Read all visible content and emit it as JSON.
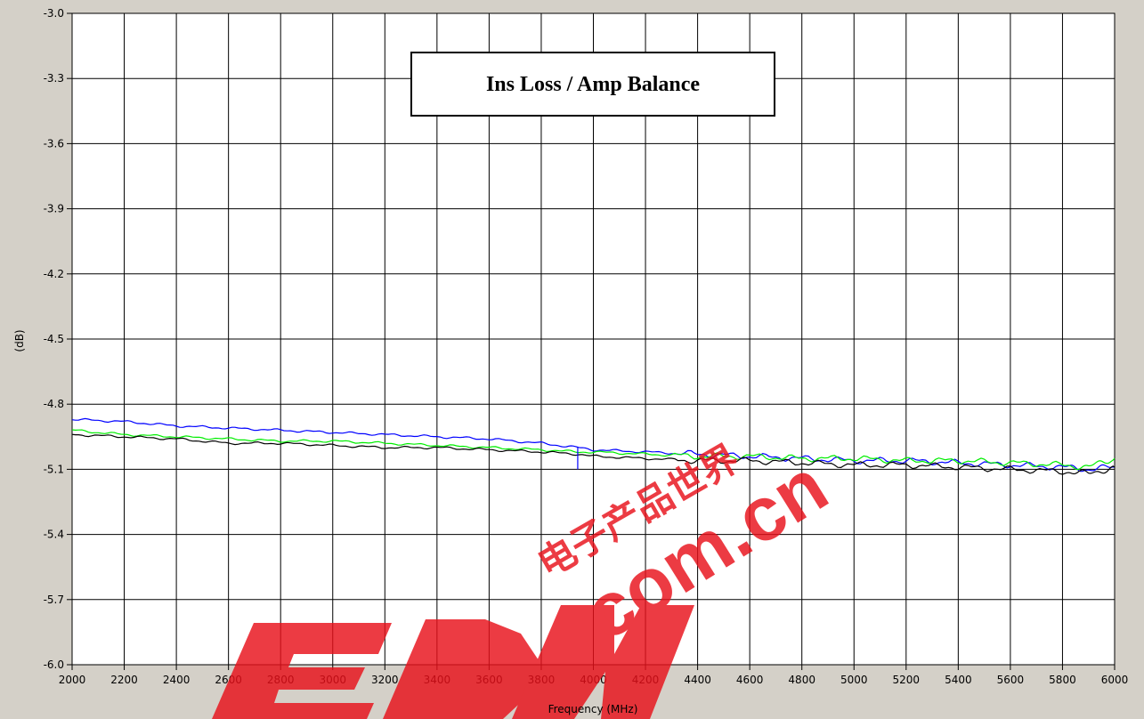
{
  "chart_data": {
    "type": "line",
    "title": "Ins Loss / Amp Balance",
    "xlabel": "Frequency (MHz)",
    "ylabel": "(dB)",
    "xlim": [
      2000,
      6000
    ],
    "ylim": [
      -6.0,
      -3.0
    ],
    "x_ticks": [
      "2000",
      "2200",
      "2400",
      "2600",
      "2800",
      "3000",
      "3200",
      "3400",
      "3600",
      "3800",
      "4000",
      "4200",
      "4400",
      "4600",
      "4800",
      "5000",
      "5200",
      "5400",
      "5600",
      "5800",
      "6000"
    ],
    "y_ticks": [
      "-3.0",
      "-3.3",
      "-3.6",
      "-3.9",
      "-4.2",
      "-4.5",
      "-4.8",
      "-5.1",
      "-5.4",
      "-5.7",
      "-6.0"
    ],
    "x_tick_values": [
      2000,
      2200,
      2400,
      2600,
      2800,
      3000,
      3200,
      3400,
      3600,
      3800,
      4000,
      4200,
      4400,
      4600,
      4800,
      5000,
      5200,
      5400,
      5600,
      5800,
      6000
    ],
    "y_tick_values": [
      -3.0,
      -3.3,
      -3.6,
      -3.9,
      -4.2,
      -4.5,
      -4.8,
      -5.1,
      -5.4,
      -5.7,
      -6.0
    ],
    "grid": true,
    "legend": "none",
    "x": [
      2000,
      2200,
      2400,
      2600,
      2800,
      3000,
      3200,
      3400,
      3600,
      3800,
      3940,
      4000,
      4200,
      4400,
      4600,
      4800,
      5000,
      5200,
      5400,
      5600,
      5800,
      5900,
      6000
    ],
    "series": [
      {
        "color": "#0000ff",
        "values": [
          -4.87,
          -4.88,
          -4.9,
          -4.91,
          -4.92,
          -4.93,
          -4.94,
          -4.95,
          -4.96,
          -4.98,
          -5.0,
          -5.01,
          -5.02,
          -5.03,
          -5.04,
          -5.05,
          -5.06,
          -5.06,
          -5.07,
          -5.08,
          -5.09,
          -5.1,
          -5.09
        ]
      },
      {
        "color": "#00ee00",
        "values": [
          -4.92,
          -4.94,
          -4.95,
          -4.96,
          -4.97,
          -4.97,
          -4.98,
          -4.99,
          -5.0,
          -5.01,
          -5.02,
          -5.02,
          -5.03,
          -5.04,
          -5.04,
          -5.05,
          -5.05,
          -5.06,
          -5.06,
          -5.07,
          -5.08,
          -5.09,
          -5.05
        ]
      },
      {
        "color": "#000000",
        "values": [
          -4.94,
          -4.95,
          -4.96,
          -4.98,
          -4.98,
          -4.99,
          -5.0,
          -5.0,
          -5.01,
          -5.02,
          -5.03,
          -5.04,
          -5.05,
          -5.06,
          -5.06,
          -5.07,
          -5.08,
          -5.08,
          -5.09,
          -5.1,
          -5.11,
          -5.12,
          -5.09
        ]
      }
    ],
    "marker": {
      "x": 3940,
      "y_top": -5.0,
      "y_bottom": -5.1,
      "color": "#0000ff"
    }
  },
  "colors": {
    "background": "#d4d0c8",
    "plot_background": "#ffffff",
    "grid": "#000000",
    "watermark": "#e8111a"
  },
  "watermark": {
    "logo": "EDN",
    "domain": ".com.cn",
    "cn_text": "电子产品世界"
  }
}
